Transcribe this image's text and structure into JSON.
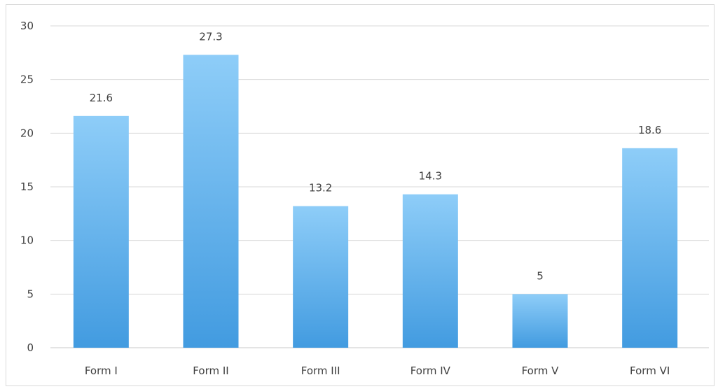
{
  "chart_data": {
    "type": "bar",
    "title": "",
    "xlabel": "",
    "ylabel": "",
    "categories": [
      "Form I",
      "Form II",
      "Form III",
      "Form IV",
      "Form V",
      "Form VI"
    ],
    "values": [
      21.6,
      27.3,
      13.2,
      14.3,
      5,
      18.6
    ],
    "data_labels": [
      "21.6",
      "27.3",
      "13.2",
      "14.3",
      "5",
      "18.6"
    ],
    "ylim": [
      0,
      30
    ],
    "y_ticks": [
      0,
      5,
      10,
      15,
      20,
      25,
      30
    ],
    "y_tick_labels": [
      "0",
      "5",
      "10",
      "15",
      "20",
      "25",
      "30"
    ],
    "grid": true,
    "legend": "none",
    "colors": {
      "bar_top": "#8ecdf8",
      "bar_bottom": "#429be0",
      "gridline": "#d9d9d9",
      "text": "#404040"
    }
  }
}
